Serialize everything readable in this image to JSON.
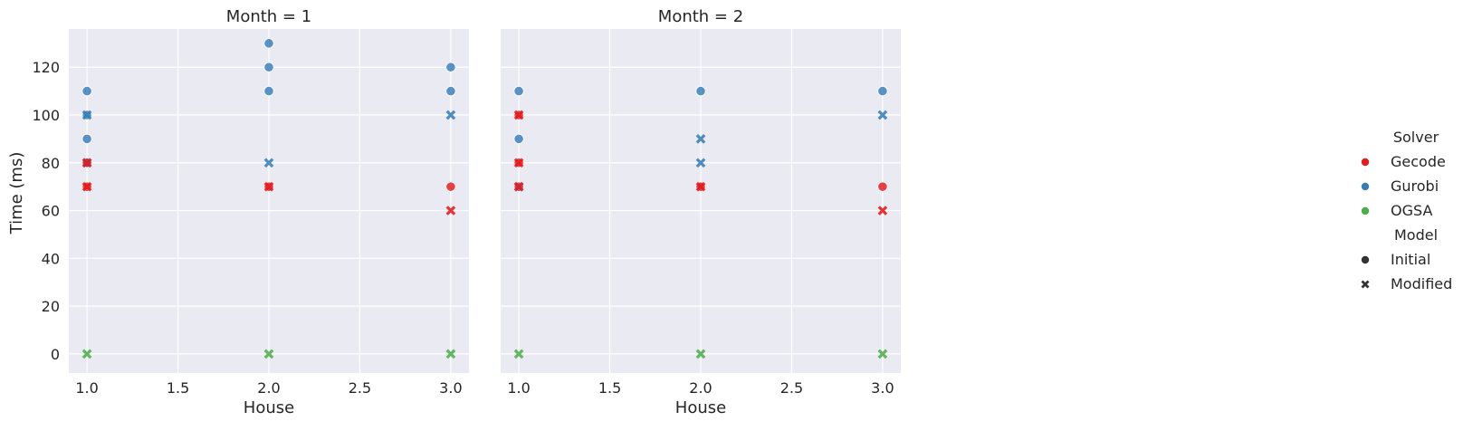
{
  "chart_data": {
    "type": "scatter",
    "xlabel": "House",
    "ylabel": "Time (ms)",
    "xlim": [
      0.9,
      3.1
    ],
    "ylim": [
      -8,
      136
    ],
    "xticks": [
      "1.0",
      "1.5",
      "2.0",
      "2.5",
      "3.0"
    ],
    "yticks": [
      "0",
      "20",
      "40",
      "60",
      "80",
      "100",
      "120"
    ],
    "grid": true,
    "colors": {
      "Gecode": "#e41a1c",
      "Gurobi": "#377eb8",
      "OGSA": "#4daf4a"
    },
    "legend": {
      "placement": "right",
      "hue_title": "Solver",
      "hue_entries": [
        "Gecode",
        "Gurobi",
        "OGSA"
      ],
      "style_title": "Model",
      "style_entries": [
        {
          "label": "Initial",
          "marker": "circle"
        },
        {
          "label": "Modified",
          "marker": "x"
        }
      ]
    },
    "panels": [
      {
        "title": "Month = 1",
        "points": [
          {
            "solver": "Gurobi",
            "model": "Initial",
            "x": 1,
            "y": 110
          },
          {
            "solver": "Gurobi",
            "model": "Initial",
            "x": 1,
            "y": 100
          },
          {
            "solver": "Gurobi",
            "model": "Initial",
            "x": 1,
            "y": 90
          },
          {
            "solver": "Gurobi",
            "model": "Initial",
            "x": 1,
            "y": 80
          },
          {
            "solver": "Gecode",
            "model": "Initial",
            "x": 1,
            "y": 80
          },
          {
            "solver": "Gecode",
            "model": "Initial",
            "x": 1,
            "y": 70
          },
          {
            "solver": "Gurobi",
            "model": "Modified",
            "x": 1,
            "y": 100
          },
          {
            "solver": "Gurobi",
            "model": "Modified",
            "x": 1,
            "y": 80
          },
          {
            "solver": "Gecode",
            "model": "Modified",
            "x": 1,
            "y": 80
          },
          {
            "solver": "Gecode",
            "model": "Modified",
            "x": 1,
            "y": 70
          },
          {
            "solver": "OGSA",
            "model": "Modified",
            "x": 1,
            "y": 0
          },
          {
            "solver": "Gurobi",
            "model": "Initial",
            "x": 2,
            "y": 130
          },
          {
            "solver": "Gurobi",
            "model": "Initial",
            "x": 2,
            "y": 120
          },
          {
            "solver": "Gurobi",
            "model": "Initial",
            "x": 2,
            "y": 110
          },
          {
            "solver": "Gecode",
            "model": "Initial",
            "x": 2,
            "y": 70
          },
          {
            "solver": "Gurobi",
            "model": "Modified",
            "x": 2,
            "y": 80
          },
          {
            "solver": "Gecode",
            "model": "Modified",
            "x": 2,
            "y": 70
          },
          {
            "solver": "OGSA",
            "model": "Modified",
            "x": 2,
            "y": 0
          },
          {
            "solver": "Gurobi",
            "model": "Initial",
            "x": 3,
            "y": 120
          },
          {
            "solver": "Gurobi",
            "model": "Initial",
            "x": 3,
            "y": 110
          },
          {
            "solver": "Gecode",
            "model": "Initial",
            "x": 3,
            "y": 70
          },
          {
            "solver": "Gurobi",
            "model": "Modified",
            "x": 3,
            "y": 100
          },
          {
            "solver": "Gecode",
            "model": "Modified",
            "x": 3,
            "y": 60
          },
          {
            "solver": "OGSA",
            "model": "Modified",
            "x": 3,
            "y": 0
          }
        ]
      },
      {
        "title": "Month = 2",
        "points": [
          {
            "solver": "Gurobi",
            "model": "Initial",
            "x": 1,
            "y": 110
          },
          {
            "solver": "Gurobi",
            "model": "Initial",
            "x": 1,
            "y": 90
          },
          {
            "solver": "Gecode",
            "model": "Initial",
            "x": 1,
            "y": 100
          },
          {
            "solver": "Gecode",
            "model": "Initial",
            "x": 1,
            "y": 80
          },
          {
            "solver": "Gecode",
            "model": "Initial",
            "x": 1,
            "y": 70
          },
          {
            "solver": "Gurobi",
            "model": "Modified",
            "x": 1,
            "y": 70
          },
          {
            "solver": "Gecode",
            "model": "Modified",
            "x": 1,
            "y": 100
          },
          {
            "solver": "Gecode",
            "model": "Modified",
            "x": 1,
            "y": 80
          },
          {
            "solver": "Gecode",
            "model": "Modified",
            "x": 1,
            "y": 70
          },
          {
            "solver": "OGSA",
            "model": "Modified",
            "x": 1,
            "y": 0
          },
          {
            "solver": "Gurobi",
            "model": "Initial",
            "x": 2,
            "y": 110
          },
          {
            "solver": "Gecode",
            "model": "Initial",
            "x": 2,
            "y": 70
          },
          {
            "solver": "Gurobi",
            "model": "Modified",
            "x": 2,
            "y": 90
          },
          {
            "solver": "Gurobi",
            "model": "Modified",
            "x": 2,
            "y": 80
          },
          {
            "solver": "Gecode",
            "model": "Modified",
            "x": 2,
            "y": 70
          },
          {
            "solver": "OGSA",
            "model": "Modified",
            "x": 2,
            "y": 0
          },
          {
            "solver": "Gurobi",
            "model": "Initial",
            "x": 3,
            "y": 110
          },
          {
            "solver": "Gecode",
            "model": "Initial",
            "x": 3,
            "y": 70
          },
          {
            "solver": "Gurobi",
            "model": "Modified",
            "x": 3,
            "y": 100
          },
          {
            "solver": "Gecode",
            "model": "Modified",
            "x": 3,
            "y": 60
          },
          {
            "solver": "OGSA",
            "model": "Modified",
            "x": 3,
            "y": 0
          }
        ]
      }
    ]
  }
}
